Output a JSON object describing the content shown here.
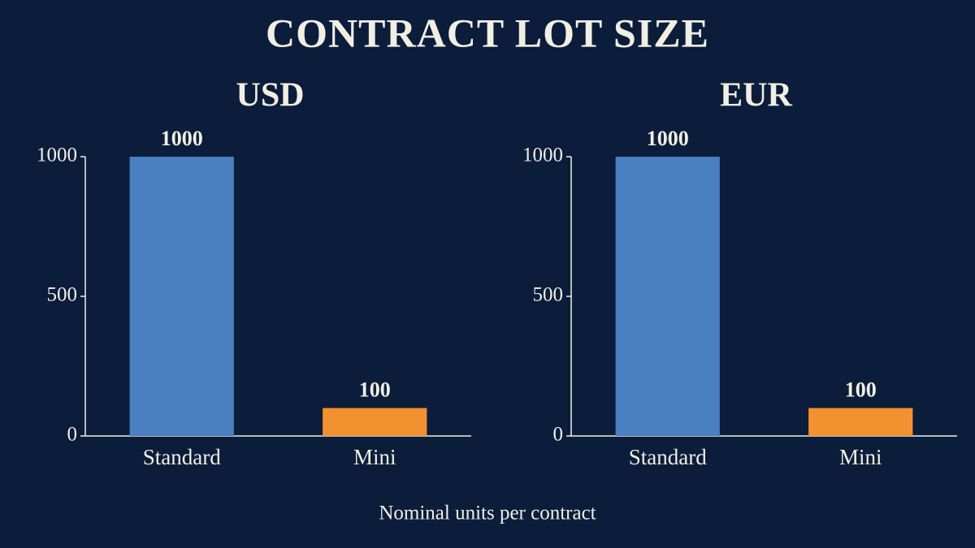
{
  "title": "CONTRACT LOT SIZE",
  "caption": "Nominal units per contract",
  "chart_data": [
    {
      "type": "bar",
      "title": "USD",
      "categories": [
        "Standard",
        "Mini"
      ],
      "values": [
        1000,
        100
      ],
      "colors": [
        "#4a7fc1",
        "#f39130"
      ],
      "ylim": [
        0,
        1000
      ],
      "yticks": [
        0,
        500,
        1000
      ]
    },
    {
      "type": "bar",
      "title": "EUR",
      "categories": [
        "Standard",
        "Mini"
      ],
      "values": [
        1000,
        100
      ],
      "colors": [
        "#4a7fc1",
        "#f39130"
      ],
      "ylim": [
        0,
        1000
      ],
      "yticks": [
        0,
        500,
        1000
      ]
    }
  ]
}
